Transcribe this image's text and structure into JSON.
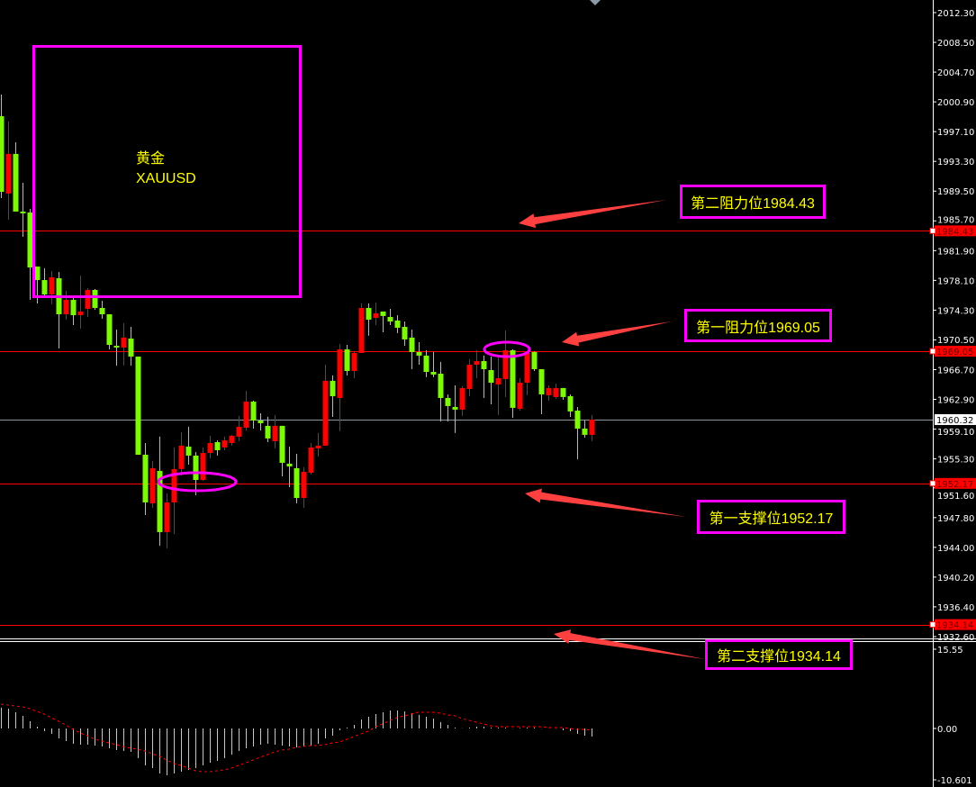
{
  "colors": {
    "background": "#000000",
    "bull_candle": "#ff0000",
    "bear_candle": "#7cfc00",
    "level_line": "#ff0000",
    "current_price_line": "#8c96a0",
    "annotation_box": "#ff00ff",
    "annotation_text": "#ffff00",
    "arrow": "#ff4040",
    "macd_histogram": "#c8c8c8",
    "macd_signal": "#ff0000",
    "axis_text": "#ffffff"
  },
  "symbol_box": {
    "name_cn": "黄金",
    "symbol": "XAUUSD"
  },
  "annotations": [
    {
      "label": "第二阻力位1984.43",
      "level": 1984.43
    },
    {
      "label": "第一阻力位1969.05",
      "level": 1969.05
    },
    {
      "label": "第一支撑位1952.17",
      "level": 1952.17
    },
    {
      "label": "第二支撑位1934.14",
      "level": 1934.14
    }
  ],
  "chart_data": [
    {
      "type": "candlestick",
      "title": "",
      "ylim": [
        1932.6,
        2012.3
      ],
      "grid": false,
      "y_ticks": [
        "2012.30",
        "2008.50",
        "2004.70",
        "2000.90",
        "1997.10",
        "1993.30",
        "1989.50",
        "1985.70",
        "1981.90",
        "1978.10",
        "1974.30",
        "1970.50",
        "1966.70",
        "1962.90",
        "1959.10",
        "1955.30",
        "1951.60",
        "1947.80",
        "1944.00",
        "1940.20",
        "1936.40",
        "1932.60"
      ],
      "price_labels": [
        {
          "text": "1984.43",
          "value": 1984.43,
          "style": "level"
        },
        {
          "text": "1969.05",
          "value": 1969.05,
          "style": "level"
        },
        {
          "text": "1960.32",
          "value": 1960.32,
          "style": "current"
        },
        {
          "text": "1952.17",
          "value": 1952.17,
          "style": "level"
        },
        {
          "text": "1934.14",
          "value": 1934.14,
          "style": "level"
        }
      ],
      "ohlc_columns": [
        "open",
        "high",
        "low",
        "close"
      ],
      "ohlc": [
        [
          1999.07,
          2001.83,
          1988.61,
          1989.41
        ],
        [
          1989.19,
          1998.39,
          1985.85,
          1994.25
        ],
        [
          1994.25,
          1995.74,
          1986.89,
          1986.89
        ],
        [
          1986.89,
          1990.56,
          1983.66,
          1986.66
        ],
        [
          1986.77,
          1987.23,
          1975.61,
          1979.75
        ],
        [
          1979.87,
          1979.87,
          1975.15,
          1978.14
        ],
        [
          1978.14,
          1979.64,
          1976.07,
          1976.3
        ],
        [
          1976.3,
          1979.29,
          1975.04,
          1978.49
        ],
        [
          1978.37,
          1979.18,
          1969.4,
          1973.77
        ],
        [
          1973.77,
          1976.76,
          1973.08,
          1975.61
        ],
        [
          1975.61,
          1976.19,
          1972.39,
          1973.66
        ],
        [
          1973.66,
          1978.72,
          1971.93,
          1974.12
        ],
        [
          1974.46,
          1977.11,
          1973.43,
          1976.88
        ],
        [
          1976.88,
          1976.99,
          1974.35,
          1974.58
        ],
        [
          1974.58,
          1975.5,
          1973.2,
          1973.77
        ],
        [
          1973.77,
          1973.77,
          1969.29,
          1969.86
        ],
        [
          1969.75,
          1971.82,
          1967.22,
          1969.52
        ],
        [
          1969.52,
          1972.63,
          1967.22,
          1970.79
        ],
        [
          1970.67,
          1972.16,
          1967.22,
          1968.37
        ],
        [
          1968.37,
          1968.37,
          1955.83,
          1955.83
        ],
        [
          1955.83,
          1957.33,
          1948.13,
          1949.74
        ],
        [
          1949.62,
          1955.03,
          1949.05,
          1954.11
        ],
        [
          1953.77,
          1958.14,
          1944.22,
          1945.95
        ],
        [
          1945.95,
          1950.89,
          1943.88,
          1949.74
        ],
        [
          1949.74,
          1956.76,
          1945.71,
          1954.0
        ],
        [
          1954.0,
          1958.71,
          1953.19,
          1956.99
        ],
        [
          1956.87,
          1959.4,
          1954.57,
          1955.72
        ],
        [
          1955.72,
          1956.18,
          1950.66,
          1952.61
        ],
        [
          1952.61,
          1956.76,
          1952.5,
          1956.06
        ],
        [
          1956.06,
          1958.25,
          1955.37,
          1957.33
        ],
        [
          1957.44,
          1957.67,
          1955.72,
          1956.41
        ],
        [
          1956.76,
          1958.14,
          1956.41,
          1957.67
        ],
        [
          1957.33,
          1958.37,
          1956.99,
          1958.25
        ],
        [
          1958.14,
          1960.78,
          1957.56,
          1959.4
        ],
        [
          1959.29,
          1963.99,
          1958.94,
          1962.62
        ],
        [
          1962.62,
          1962.73,
          1959.17,
          1960.2
        ],
        [
          1960.2,
          1961.12,
          1958.94,
          1959.86
        ],
        [
          1959.52,
          1960.67,
          1957.44,
          1957.91
        ],
        [
          1957.56,
          1960.9,
          1956.64,
          1959.52
        ],
        [
          1959.52,
          1959.52,
          1953.07,
          1954.8
        ],
        [
          1954.69,
          1956.87,
          1951.69,
          1954.34
        ],
        [
          1954.11,
          1955.95,
          1949.62,
          1950.31
        ],
        [
          1950.31,
          1954.23,
          1949.05,
          1953.65
        ],
        [
          1953.54,
          1957.33,
          1953.31,
          1956.76
        ],
        [
          1956.64,
          1958.6,
          1955.6,
          1956.99
        ],
        [
          1956.99,
          1967.33,
          1956.99,
          1965.27
        ],
        [
          1965.27,
          1965.95,
          1960.66,
          1963.31
        ],
        [
          1963.08,
          1969.98,
          1958.83,
          1969.29
        ],
        [
          1969.29,
          1969.86,
          1965.95,
          1966.53
        ],
        [
          1966.53,
          1969.06,
          1965.61,
          1968.83
        ],
        [
          1968.83,
          1975.15,
          1968.83,
          1974.58
        ],
        [
          1974.58,
          1975.15,
          1971.02,
          1973.08
        ],
        [
          1973.31,
          1975.27,
          1972.39,
          1973.89
        ],
        [
          1974.12,
          1974.12,
          1971.47,
          1973.55
        ],
        [
          1973.43,
          1974.46,
          1972.39,
          1972.85
        ],
        [
          1972.97,
          1973.66,
          1971.36,
          1972.05
        ],
        [
          1972.16,
          1972.85,
          1969.75,
          1970.56
        ],
        [
          1970.79,
          1971.82,
          1966.76,
          1968.95
        ],
        [
          1968.95,
          1970.21,
          1967.33,
          1968.49
        ],
        [
          1968.49,
          1969.18,
          1965.73,
          1966.41
        ],
        [
          1966.41,
          1968.95,
          1965.73,
          1966.07
        ],
        [
          1966.18,
          1967.68,
          1960.09,
          1963.08
        ],
        [
          1963.08,
          1963.54,
          1960.09,
          1962.05
        ],
        [
          1961.93,
          1964.69,
          1958.6,
          1961.59
        ],
        [
          1961.59,
          1964.57,
          1960.78,
          1964.35
        ],
        [
          1964.23,
          1968.03,
          1963.31,
          1967.33
        ],
        [
          1967.33,
          1969.17,
          1965.61,
          1967.79
        ],
        [
          1967.79,
          1968.49,
          1963.08,
          1966.76
        ],
        [
          1966.64,
          1968.37,
          1962.27,
          1965.03
        ],
        [
          1964.8,
          1968.26,
          1960.9,
          1965.61
        ],
        [
          1965.5,
          1971.7,
          1963.2,
          1969.17
        ],
        [
          1969.17,
          1969.29,
          1960.55,
          1961.82
        ],
        [
          1961.7,
          1965.61,
          1961.47,
          1965.03
        ],
        [
          1965.03,
          1969.06,
          1963.43,
          1968.83
        ],
        [
          1968.95,
          1969.06,
          1966.53,
          1966.76
        ],
        [
          1966.76,
          1966.76,
          1961.01,
          1963.54
        ],
        [
          1963.43,
          1964.69,
          1962.73,
          1964.35
        ],
        [
          1963.2,
          1964.92,
          1962.97,
          1964.35
        ],
        [
          1964.35,
          1964.35,
          1962.85,
          1963.2
        ],
        [
          1963.31,
          1963.54,
          1960.66,
          1961.36
        ],
        [
          1961.47,
          1961.93,
          1955.26,
          1959.17
        ],
        [
          1959.17,
          1960.2,
          1958.02,
          1958.37
        ],
        [
          1958.37,
          1960.9,
          1957.56,
          1960.32
        ]
      ],
      "horizontal_lines": [
        1984.43,
        1969.05,
        1960.32,
        1952.17,
        1934.14
      ]
    },
    {
      "type": "bar+line",
      "title": "",
      "ylim": [
        -10.601,
        15.55
      ],
      "y_ticks": [
        "15.55",
        "0.00",
        "-10.601"
      ],
      "histogram": [
        3.73,
        3.57,
        2.92,
        2.27,
        1.3,
        0.32,
        -0.49,
        -0.97,
        -1.79,
        -2.27,
        -2.76,
        -2.92,
        -2.92,
        -3.08,
        -3.25,
        -3.57,
        -3.9,
        -4.06,
        -4.22,
        -5.36,
        -6.66,
        -7.14,
        -8.12,
        -8.44,
        -8.12,
        -7.79,
        -7.47,
        -7.14,
        -6.66,
        -6.17,
        -5.84,
        -5.36,
        -4.71,
        -4.06,
        -3.57,
        -3.25,
        -2.92,
        -2.76,
        -2.92,
        -3.08,
        -3.25,
        -3.41,
        -3.25,
        -3.08,
        -2.76,
        -1.79,
        -1.3,
        -0.32,
        0.16,
        0.65,
        1.62,
        2.11,
        2.6,
        2.92,
        3.25,
        3.25,
        3.08,
        2.76,
        2.44,
        2.11,
        1.79,
        1.14,
        0.65,
        0.16,
        0.05,
        0.16,
        0.32,
        0.32,
        0.16,
        0.16,
        0.16,
        -0.05,
        0.1,
        0.16,
        0.16,
        -0.05,
        0.05,
        -0.05,
        -0.32,
        -0.49,
        -0.97,
        -1.3,
        -1.46
      ],
      "signal": [
        4.38,
        4.22,
        4.06,
        3.9,
        3.57,
        3.08,
        2.6,
        1.95,
        1.3,
        0.65,
        -0.16,
        -0.81,
        -1.3,
        -1.95,
        -2.27,
        -2.6,
        -2.92,
        -3.25,
        -3.57,
        -3.73,
        -4.06,
        -4.55,
        -5.03,
        -5.68,
        -6.33,
        -6.66,
        -7.14,
        -7.63,
        -7.79,
        -7.79,
        -7.63,
        -7.47,
        -7.14,
        -6.66,
        -6.17,
        -5.68,
        -5.19,
        -4.71,
        -4.22,
        -3.9,
        -3.73,
        -3.41,
        -3.25,
        -3.08,
        -3.08,
        -2.92,
        -2.6,
        -2.44,
        -1.95,
        -1.46,
        -0.97,
        -0.49,
        0.32,
        0.81,
        1.46,
        1.95,
        2.27,
        2.6,
        2.92,
        2.92,
        2.92,
        2.76,
        2.44,
        2.27,
        1.79,
        1.46,
        1.14,
        0.81,
        0.49,
        0.32,
        0.32,
        0.32,
        0.32,
        0.32,
        0.32,
        0.32,
        0.16,
        0.16,
        0.16,
        0,
        -0.16,
        -0.16,
        -0.32
      ]
    }
  ]
}
